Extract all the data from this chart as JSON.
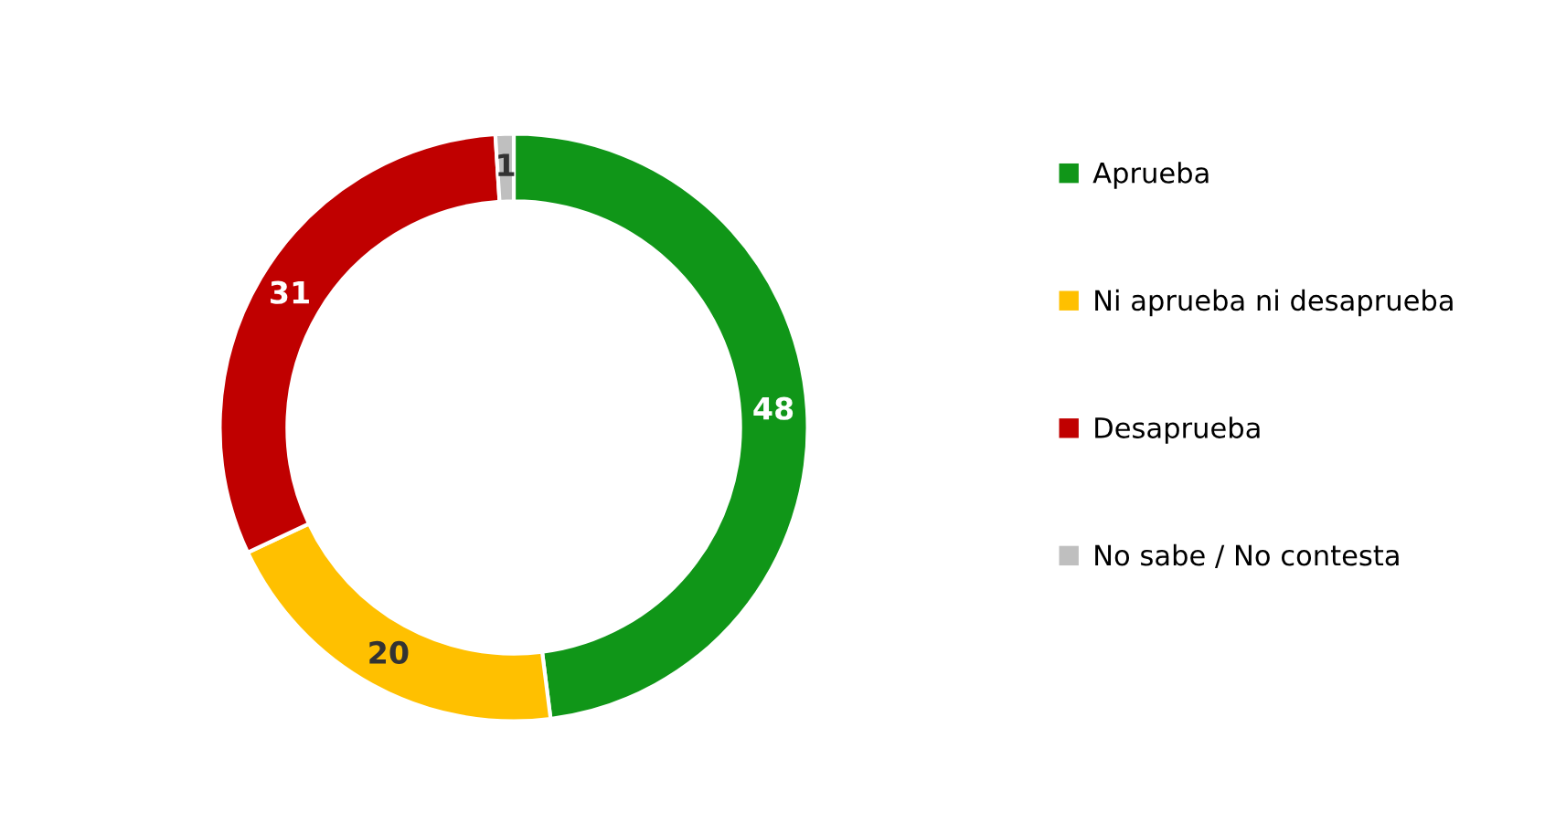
{
  "chart_data": {
    "type": "donut",
    "categories": [
      "Aprueba",
      "Ni aprueba ni desaprueba",
      "Desaprueba",
      "No sabe / No contesta"
    ],
    "values": [
      48,
      20,
      31,
      1
    ],
    "colors": [
      "#109618",
      "#ffc000",
      "#c00000",
      "#bfbfbf"
    ],
    "data_labels": true,
    "legend": "right"
  }
}
